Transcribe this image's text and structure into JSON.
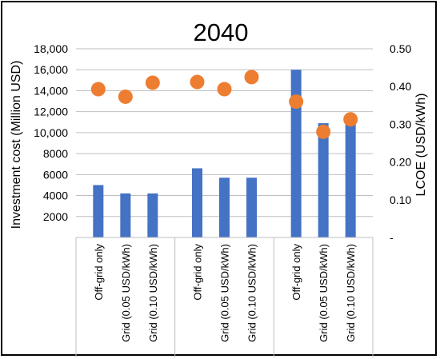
{
  "chart_data": {
    "type": "bar",
    "title": "2040",
    "ylabel": "Investment cost (Million USD)",
    "y2label": "LCOE (USD/kWh)",
    "ylim": [
      0,
      18000
    ],
    "y2lim": [
      0,
      0.5
    ],
    "y_ticks": [
      "2000",
      "4000",
      "6000",
      "8000",
      "10,000",
      "12,000",
      "14,000",
      "16,000",
      "18,000"
    ],
    "y2_ticks": [
      "-",
      "0.10",
      "0.20",
      "0.30",
      "0.40",
      "0.50"
    ],
    "categories": [
      "Off-grid only",
      "Grid (0.05 USD/kWh)",
      "Grid (0.10 USD/kWh)",
      "Off-grid only",
      "Grid (0.05 USD/kWh)",
      "Grid (0.10 USD/kWh)",
      "Off-grid only",
      "Grid (0.05 USD/kWh)",
      "Grid (0.10 USD/kWh)"
    ],
    "groups": 3,
    "series": [
      {
        "type": "bar",
        "axis": "left",
        "color": "#4472c4",
        "values": [
          5000,
          4200,
          4200,
          6600,
          5700,
          5700,
          16000,
          10900,
          11000
        ]
      },
      {
        "type": "scatter",
        "axis": "right",
        "color": "#ed7d31",
        "values": [
          0.393,
          0.373,
          0.41,
          0.412,
          0.393,
          0.425,
          0.36,
          0.28,
          0.313
        ]
      }
    ],
    "grid": true,
    "legend": "none"
  }
}
